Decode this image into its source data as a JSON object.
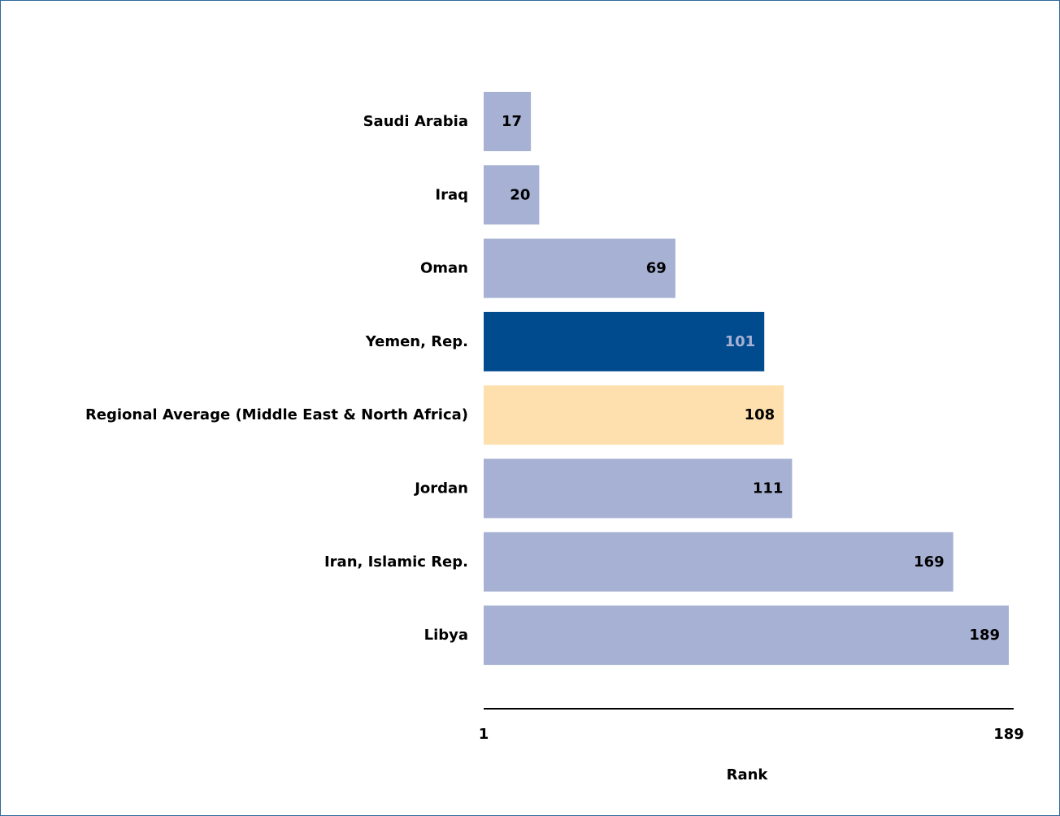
{
  "chart_data": {
    "type": "bar",
    "orientation": "horizontal",
    "categories": [
      "Saudi Arabia",
      "Iraq",
      "Oman",
      "Yemen, Rep.",
      "Regional Average (Middle East & North Africa)",
      "Jordan",
      "Iran, Islamic Rep.",
      "Libya"
    ],
    "values": [
      17,
      20,
      69,
      101,
      108,
      111,
      169,
      189
    ],
    "xlabel": "Rank",
    "ylabel": "",
    "xlim": [
      1,
      189
    ],
    "x_tick_labels": [
      "1",
      "189"
    ],
    "grid": false,
    "legend": "none",
    "colors": {
      "default": "#a6b1d3",
      "highlight": "#004b8d",
      "average": "#fde0ad",
      "label_default": "#000000",
      "label_highlight": "#a6b1d3"
    },
    "highlight_index": 3,
    "average_index": 4
  }
}
